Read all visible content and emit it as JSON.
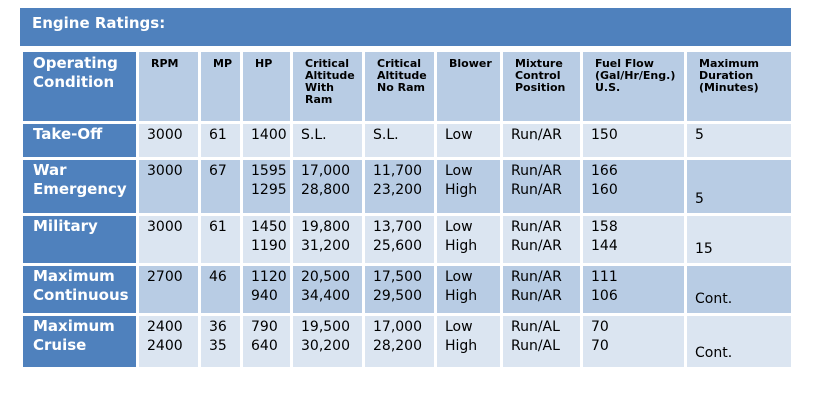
{
  "title": "Engine Ratings:",
  "columns": [
    "Operating Condition",
    "RPM",
    "MP",
    "HP",
    "Critical Altitude With Ram",
    "Critical Altitude No Ram",
    "Blower",
    "Mixture Control Position",
    "Fuel Flow (Gal/Hr/Eng.) U.S.",
    "Maximum Duration (Minutes)"
  ],
  "rows": [
    {
      "condition": [
        "Take-Off"
      ],
      "rpm": [
        "3000"
      ],
      "mp": [
        "61"
      ],
      "hp": [
        "1400"
      ],
      "alt_ram": [
        "S.L."
      ],
      "alt_noram": [
        "S.L."
      ],
      "blower": [
        "Low"
      ],
      "mixture": [
        "Run/AR"
      ],
      "fuel": [
        "150"
      ],
      "duration": "5"
    },
    {
      "condition": [
        "War",
        "Emergency"
      ],
      "rpm": [
        "3000"
      ],
      "mp": [
        "67"
      ],
      "hp": [
        "1595",
        "1295"
      ],
      "alt_ram": [
        "17,000",
        "28,800"
      ],
      "alt_noram": [
        "11,700",
        "23,200"
      ],
      "blower": [
        "Low",
        "High"
      ],
      "mixture": [
        "Run/AR",
        "Run/AR"
      ],
      "fuel": [
        "166",
        "160"
      ],
      "duration": "5"
    },
    {
      "condition": [
        "Military"
      ],
      "rpm": [
        "3000"
      ],
      "mp": [
        "61"
      ],
      "hp": [
        "1450",
        "1190"
      ],
      "alt_ram": [
        "19,800",
        "31,200"
      ],
      "alt_noram": [
        "13,700",
        "25,600"
      ],
      "blower": [
        "Low",
        "High"
      ],
      "mixture": [
        "Run/AR",
        "Run/AR"
      ],
      "fuel": [
        "158",
        "144"
      ],
      "duration": "15"
    },
    {
      "condition": [
        "Maximum",
        "Continuous"
      ],
      "rpm": [
        "2700"
      ],
      "mp": [
        "46"
      ],
      "hp": [
        "1120",
        "940"
      ],
      "alt_ram": [
        "20,500",
        "34,400"
      ],
      "alt_noram": [
        "17,500",
        "29,500"
      ],
      "blower": [
        "Low",
        "High"
      ],
      "mixture": [
        "Run/AR",
        "Run/AR"
      ],
      "fuel": [
        "111",
        "106"
      ],
      "duration": "Cont."
    },
    {
      "condition": [
        "Maximum",
        "Cruise"
      ],
      "rpm": [
        "2400",
        "2400"
      ],
      "mp": [
        "36",
        "35"
      ],
      "hp": [
        "790",
        "640"
      ],
      "alt_ram": [
        "19,500",
        "30,200"
      ],
      "alt_noram": [
        "17,000",
        "28,200"
      ],
      "blower": [
        "Low",
        "High"
      ],
      "mixture": [
        "Run/AL",
        "Run/AL"
      ],
      "fuel": [
        "70",
        "70"
      ],
      "duration": "Cont."
    }
  ],
  "colors": {
    "header_dark": "#4f81bd",
    "cell_mid": "#b8cce4",
    "cell_light": "#dbe5f1"
  }
}
